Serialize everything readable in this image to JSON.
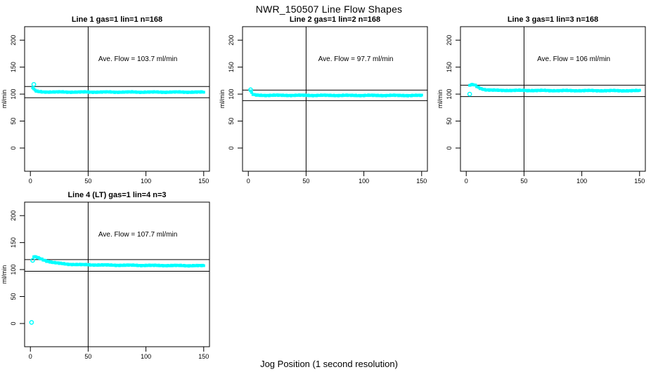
{
  "title": "NWR_150507  Line Flow Shapes",
  "xlabel": "Jog Position (1 second resolution)",
  "ylabel": "ml/min",
  "colors": {
    "points": "#00FFFF",
    "axis": "#000000",
    "background": "#FFFFFF"
  },
  "chart_data": {
    "type": "scatter",
    "title": "NWR_150507  Line Flow Shapes",
    "xlabel": "Jog Position (1 second resolution)",
    "ylabel": "ml/min",
    "x_ticks": [
      0,
      50,
      100,
      150
    ],
    "y_ticks": [
      0,
      50,
      100,
      150,
      200
    ],
    "xlim": [
      -5,
      155
    ],
    "ylim": [
      -43,
      225
    ],
    "grid": false,
    "vline_x": 50,
    "marker": "filled-square",
    "x_step": 1,
    "panels": [
      {
        "title": "Line 1 gas=1 lin=1 n=168",
        "ave_label": "Ave. Flow =  103.7  ml/min",
        "ave_flow": 103.7,
        "n": 168,
        "hline_upper": 114.1,
        "hline_lower": 93.3,
        "curve": [
          [
            2,
            112
          ],
          [
            3,
            109
          ],
          [
            4,
            107
          ],
          [
            5,
            105.5
          ],
          [
            7,
            104.5
          ],
          [
            10,
            104.1
          ],
          [
            30,
            103.8
          ],
          [
            150,
            103.7
          ]
        ],
        "outliers": [
          [
            3,
            118
          ]
        ]
      },
      {
        "title": "Line 2 gas=1 lin=2 n=168",
        "ave_label": "Ave. Flow =  97.7  ml/min",
        "ave_flow": 97.7,
        "n": 168,
        "hline_upper": 107.5,
        "hline_lower": 87.9,
        "curve": [
          [
            2,
            106
          ],
          [
            3,
            102
          ],
          [
            4,
            99.5
          ],
          [
            6,
            98.2
          ],
          [
            9,
            97.8
          ],
          [
            80,
            97.6
          ],
          [
            150,
            97.5
          ]
        ],
        "outliers": [
          [
            2,
            108
          ]
        ]
      },
      {
        "title": "Line 3 gas=1 lin=3 n=168",
        "ave_label": "Ave. Flow =  106  ml/min",
        "ave_flow": 106,
        "n": 168,
        "hline_upper": 116.6,
        "hline_lower": 95.4,
        "curve": [
          [
            3,
            116
          ],
          [
            4,
            117
          ],
          [
            6,
            117.5
          ],
          [
            8,
            116
          ],
          [
            10,
            113
          ],
          [
            13,
            110
          ],
          [
            17,
            108
          ],
          [
            25,
            107
          ],
          [
            80,
            106.5
          ],
          [
            150,
            106.3
          ]
        ],
        "outliers": [
          [
            3,
            100
          ]
        ]
      },
      {
        "title": "Line 4 (LT) gas=1 lin=4 n=3",
        "ave_label": "Ave. Flow =  107.7  ml/min",
        "ave_flow": 107.7,
        "n": 3,
        "hline_upper": 118.5,
        "hline_lower": 96.9,
        "curve": [
          [
            3,
            124
          ],
          [
            5,
            123
          ],
          [
            7,
            121.5
          ],
          [
            10,
            119
          ],
          [
            14,
            116
          ],
          [
            19,
            113.5
          ],
          [
            25,
            111.5
          ],
          [
            32,
            110
          ],
          [
            45,
            109
          ],
          [
            70,
            108.2
          ],
          [
            110,
            107.6
          ],
          [
            150,
            107.2
          ]
        ],
        "outliers": [
          [
            1,
            2
          ],
          [
            2,
            117
          ]
        ]
      }
    ],
    "annotation_position": {
      "x": 93,
      "y": 161
    }
  }
}
